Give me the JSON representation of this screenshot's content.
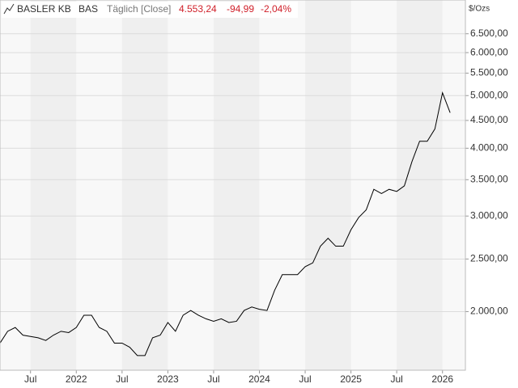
{
  "chart_data": {
    "type": "line",
    "header": {
      "name": "BASLER KB",
      "symbol": "BAS",
      "interval": "Täglich [Close]",
      "last": "4.553,24",
      "change": "-94,99",
      "change_pct": "-2,04%"
    },
    "unit": "$/Ozs",
    "log_scale": true,
    "grid": true,
    "x": [
      "2021-03",
      "2021-04",
      "2021-05",
      "2021-06",
      "2021-07",
      "2021-08",
      "2021-09",
      "2021-10",
      "2021-11",
      "2021-12",
      "2022-01",
      "2022-02",
      "2022-03",
      "2022-04",
      "2022-05",
      "2022-06",
      "2022-07",
      "2022-08",
      "2022-09",
      "2022-10",
      "2022-11",
      "2022-12",
      "2023-01",
      "2023-02",
      "2023-03",
      "2023-04",
      "2023-05",
      "2023-06",
      "2023-07",
      "2023-08",
      "2023-09",
      "2023-10",
      "2023-11",
      "2023-12",
      "2024-01",
      "2024-02",
      "2024-03",
      "2024-04",
      "2024-05",
      "2024-06",
      "2024-07",
      "2024-08",
      "2024-09",
      "2024-10",
      "2024-11",
      "2024-12",
      "2025-01",
      "2025-02",
      "2025-03",
      "2025-04",
      "2025-05",
      "2025-06",
      "2025-07",
      "2025-08",
      "2025-09",
      "2025-10",
      "2025-11",
      "2025-12",
      "2026-01",
      "2026-02"
    ],
    "series": [
      {
        "name": "BASLER KB",
        "color": "#000000",
        "values": [
          1750,
          1840,
          1870,
          1810,
          1800,
          1790,
          1770,
          1810,
          1840,
          1830,
          1870,
          1970,
          1970,
          1870,
          1840,
          1750,
          1750,
          1720,
          1660,
          1660,
          1790,
          1810,
          1910,
          1840,
          1970,
          2010,
          1970,
          1940,
          1920,
          1940,
          1910,
          1920,
          2010,
          2040,
          2020,
          2010,
          2190,
          2340,
          2340,
          2340,
          2420,
          2460,
          2640,
          2730,
          2640,
          2640,
          2830,
          2980,
          3080,
          3360,
          3300,
          3360,
          3330,
          3410,
          3780,
          4120,
          4120,
          4340,
          5060,
          4650
        ]
      }
    ],
    "xlim": [
      "2021-03",
      "2026-04"
    ],
    "xticks": [
      {
        "value": "2021-07",
        "label": "Jul"
      },
      {
        "value": "2022-01",
        "label": "2022"
      },
      {
        "value": "2022-07",
        "label": "Jul"
      },
      {
        "value": "2023-01",
        "label": "2023"
      },
      {
        "value": "2023-07",
        "label": "Jul"
      },
      {
        "value": "2024-01",
        "label": "2024"
      },
      {
        "value": "2024-07",
        "label": "Jul"
      },
      {
        "value": "2025-01",
        "label": "2025"
      },
      {
        "value": "2025-07",
        "label": "Jul"
      },
      {
        "value": "2026-01",
        "label": "2026"
      }
    ],
    "ylim": [
      1560,
      7500
    ],
    "yticks": [
      {
        "value": 2000,
        "label": "2.000,00"
      },
      {
        "value": 2500,
        "label": "2.500,00"
      },
      {
        "value": 3000,
        "label": "3.000,00"
      },
      {
        "value": 3500,
        "label": "3.500,00"
      },
      {
        "value": 4000,
        "label": "4.000,00"
      },
      {
        "value": 4500,
        "label": "4.500,00"
      },
      {
        "value": 5000,
        "label": "5.000,00"
      },
      {
        "value": 5500,
        "label": "5.500,00"
      },
      {
        "value": 6000,
        "label": "6.000,00"
      },
      {
        "value": 6500,
        "label": "6.500,00"
      }
    ]
  }
}
